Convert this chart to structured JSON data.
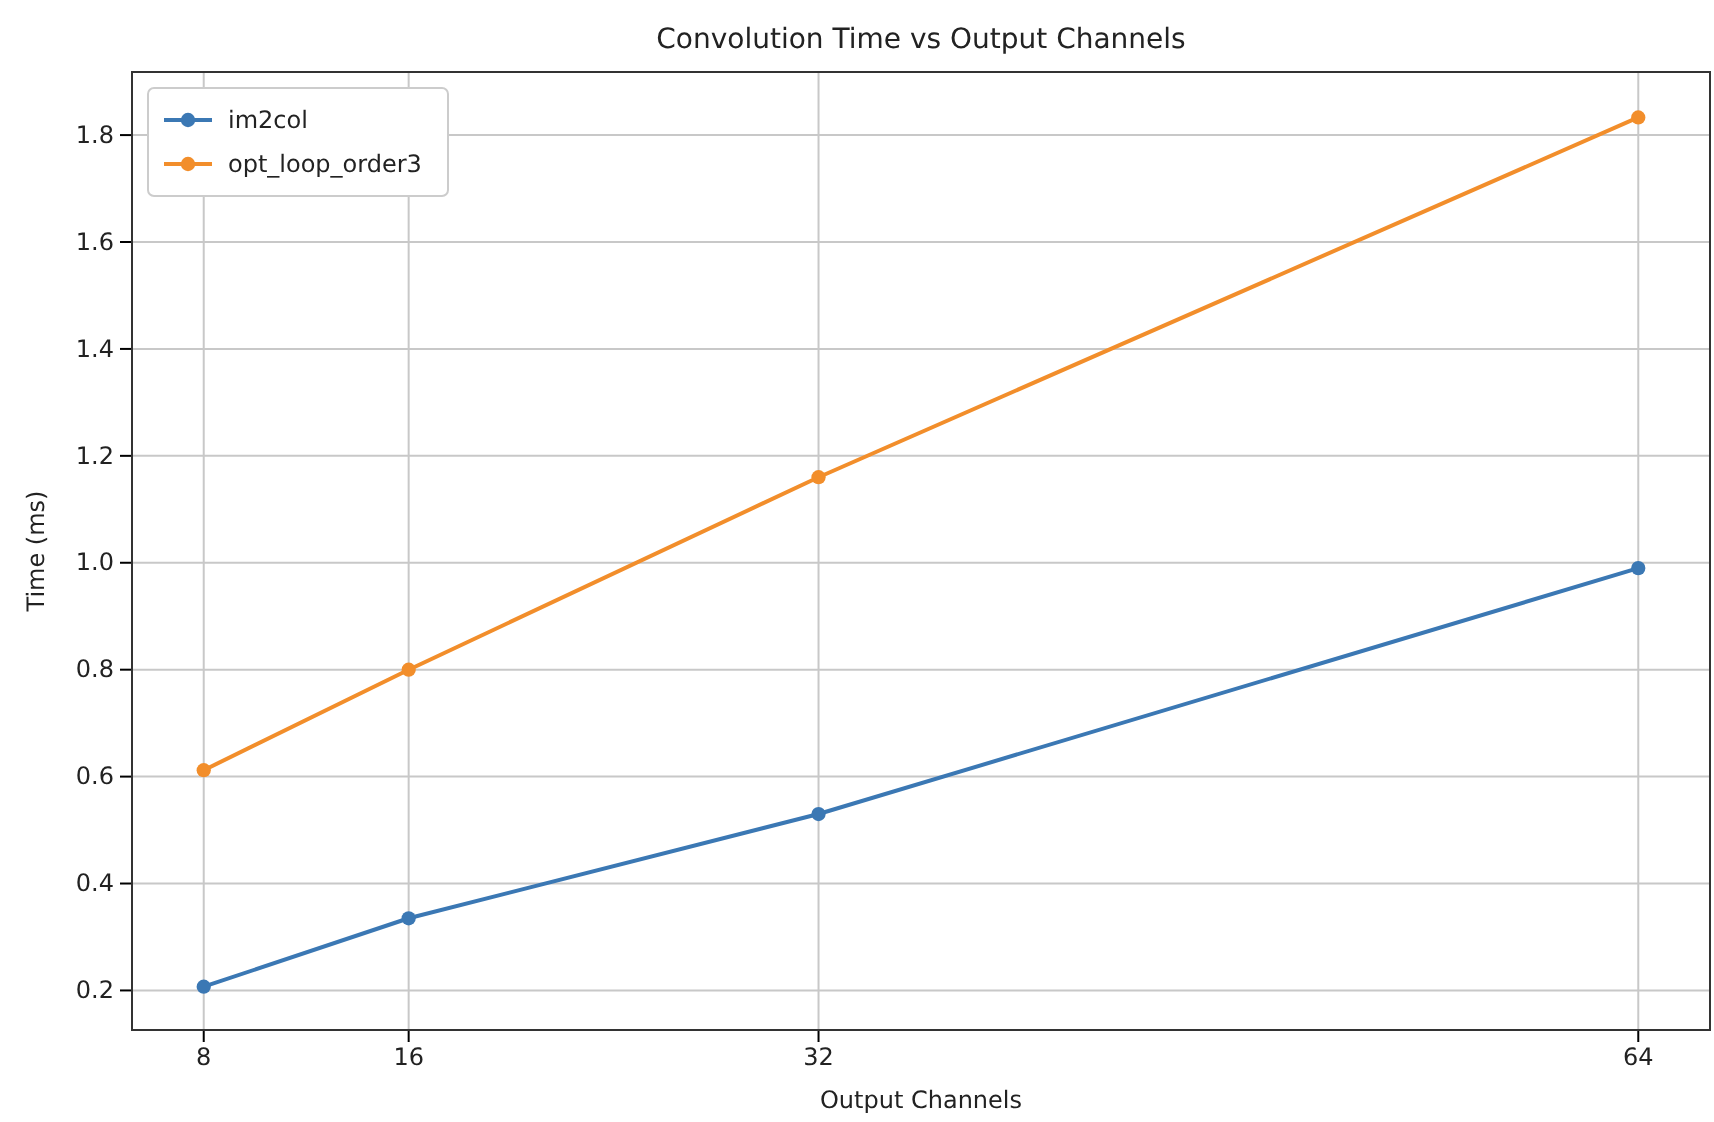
{
  "chart_data": {
    "type": "line",
    "title": "Convolution Time vs Output Channels",
    "xlabel": "Output Channels",
    "ylabel": "Time (ms)",
    "x": [
      8,
      16,
      32,
      64
    ],
    "series": [
      {
        "name": "im2col",
        "color": "#3b78b4",
        "values": [
          0.207,
          0.335,
          0.53,
          0.99
        ]
      },
      {
        "name": "opt_loop_order3",
        "color": "#f28e2b",
        "values": [
          0.612,
          0.8,
          1.16,
          1.833
        ]
      }
    ],
    "xlim": [
      5.2,
      66.8
    ],
    "xticks": [
      8,
      16,
      32,
      64
    ],
    "ylim": [
      0.126,
      1.918
    ],
    "yticks": [
      0.2,
      0.4,
      0.6,
      0.8,
      {
        "value": 1,
        "label": "1.0"
      },
      1.2,
      1.4,
      1.6,
      1.8
    ],
    "grid": true,
    "legend": "top left",
    "marker": "circle",
    "line_style": "solid"
  }
}
